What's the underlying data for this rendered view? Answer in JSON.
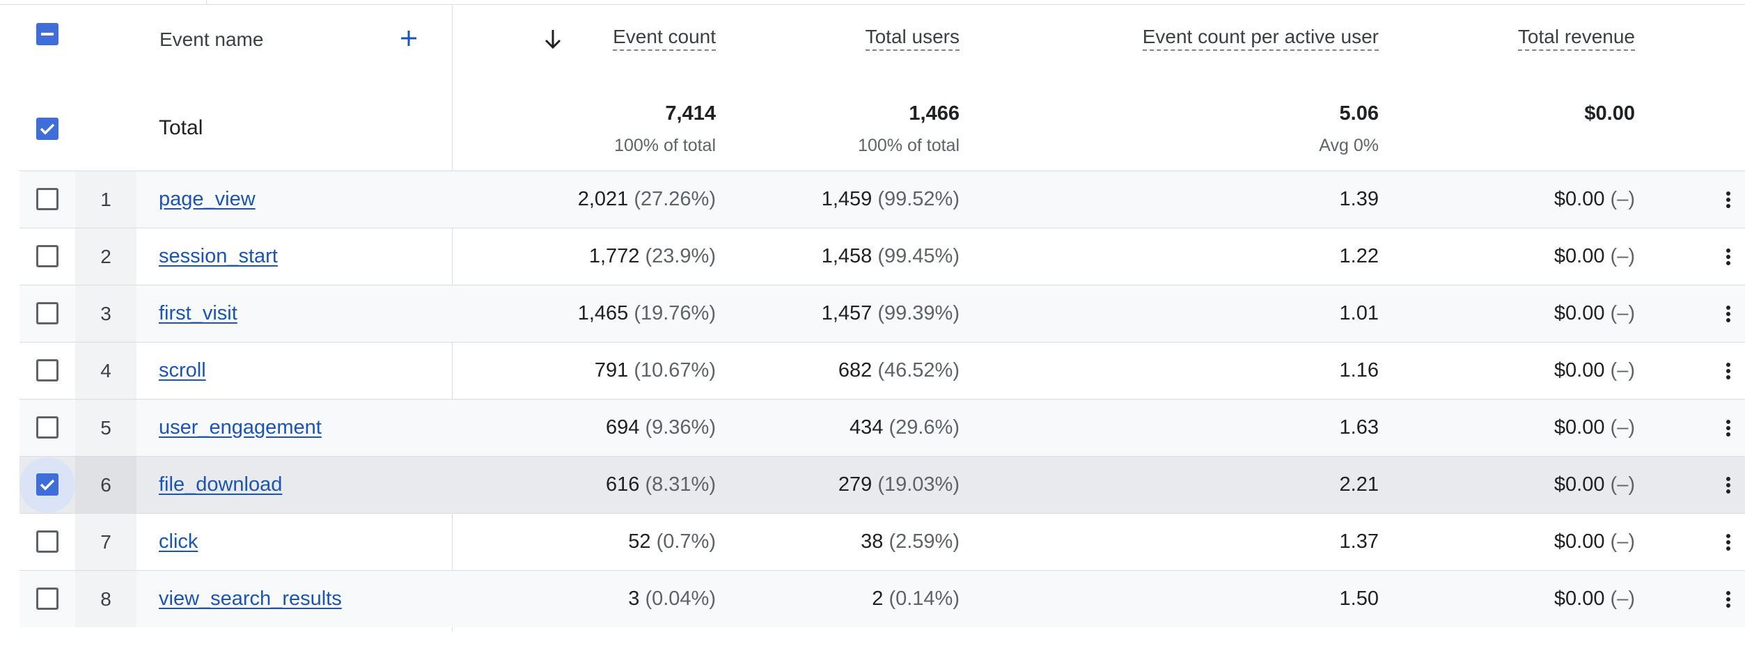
{
  "header": {
    "event_name": "Event name",
    "columns": [
      "Event count",
      "Total users",
      "Event count per active user",
      "Total revenue"
    ]
  },
  "totals": {
    "label": "Total",
    "event_count": "7,414",
    "event_count_sub": "100% of total",
    "total_users": "1,466",
    "total_users_sub": "100% of total",
    "per_user": "5.06",
    "per_user_sub": "Avg 0%",
    "revenue": "$0.00"
  },
  "rows": [
    {
      "rank": "1",
      "name": "page_view",
      "count": "2,021",
      "count_pct": "(27.26%)",
      "users": "1,459",
      "users_pct": "(99.52%)",
      "per_user": "1.39",
      "revenue": "$0.00",
      "revenue_pct": "(–)",
      "checked": false
    },
    {
      "rank": "2",
      "name": "session_start",
      "count": "1,772",
      "count_pct": "(23.9%)",
      "users": "1,458",
      "users_pct": "(99.45%)",
      "per_user": "1.22",
      "revenue": "$0.00",
      "revenue_pct": "(–)",
      "checked": false
    },
    {
      "rank": "3",
      "name": "first_visit",
      "count": "1,465",
      "count_pct": "(19.76%)",
      "users": "1,457",
      "users_pct": "(99.39%)",
      "per_user": "1.01",
      "revenue": "$0.00",
      "revenue_pct": "(–)",
      "checked": false
    },
    {
      "rank": "4",
      "name": "scroll",
      "count": "791",
      "count_pct": "(10.67%)",
      "users": "682",
      "users_pct": "(46.52%)",
      "per_user": "1.16",
      "revenue": "$0.00",
      "revenue_pct": "(–)",
      "checked": false
    },
    {
      "rank": "5",
      "name": "user_engagement",
      "count": "694",
      "count_pct": "(9.36%)",
      "users": "434",
      "users_pct": "(29.6%)",
      "per_user": "1.63",
      "revenue": "$0.00",
      "revenue_pct": "(–)",
      "checked": false
    },
    {
      "rank": "6",
      "name": "file_download",
      "count": "616",
      "count_pct": "(8.31%)",
      "users": "279",
      "users_pct": "(19.03%)",
      "per_user": "2.21",
      "revenue": "$0.00",
      "revenue_pct": "(–)",
      "checked": true
    },
    {
      "rank": "7",
      "name": "click",
      "count": "52",
      "count_pct": "(0.7%)",
      "users": "38",
      "users_pct": "(2.59%)",
      "per_user": "1.37",
      "revenue": "$0.00",
      "revenue_pct": "(–)",
      "checked": false
    },
    {
      "rank": "8",
      "name": "view_search_results",
      "count": "3",
      "count_pct": "(0.04%)",
      "users": "2",
      "users_pct": "(0.14%)",
      "per_user": "1.50",
      "revenue": "$0.00",
      "revenue_pct": "(–)",
      "checked": false
    }
  ],
  "colors": {
    "accent": "#3f6ed9",
    "link": "#1a55b5",
    "selected_row": "#e8eaed"
  },
  "icons": {
    "sort": "arrow-down-icon",
    "add": "plus-icon",
    "more": "more-vert-icon",
    "select_all": "indeterminate-checkbox-icon"
  }
}
